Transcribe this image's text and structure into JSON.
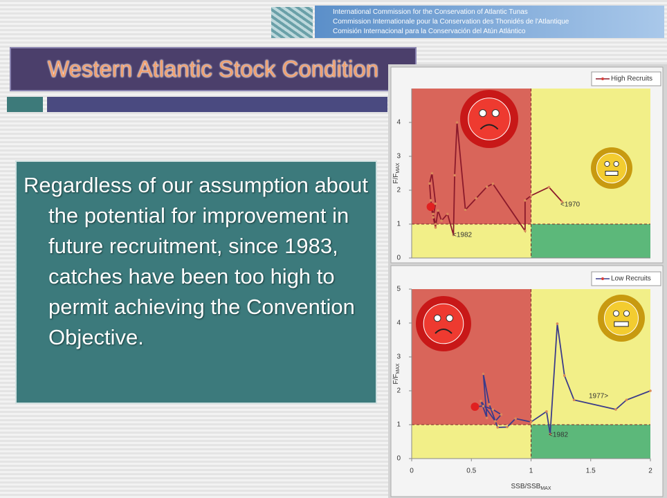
{
  "header": {
    "lines": [
      "International Commission for the Conservation of Atlantic Tunas",
      "Commission Internationale pour la Conservation des Thonidés de l'Atlantique",
      "Comisión Internacional para la Conservación del Atún Atlántico"
    ]
  },
  "slide": {
    "title": "Western Atlantic Stock Condition",
    "body": "Regardless of our assumption about the potential for improvement in future recruitment, since 1983, catches have been too high to permit achieving the Convention Objective."
  },
  "chart_data": [
    {
      "type": "line",
      "y_label": "F/F",
      "y_label_sub": "MAX",
      "series": [
        {
          "name": "High Recruits",
          "color": "#8b1a2b",
          "x": [
            1.26,
            1.15,
            1.0,
            0.95,
            0.95,
            0.68,
            0.63,
            0.54,
            0.45,
            0.38,
            0.36,
            0.35,
            0.3,
            0.25,
            0.22,
            0.2,
            0.18,
            0.2,
            0.17,
            0.15,
            0.16,
            0.18,
            0.2,
            0.16
          ],
          "values": [
            1.66,
            2.09,
            1.84,
            1.7,
            0.8,
            2.19,
            2.1,
            1.76,
            1.42,
            4.0,
            2.44,
            0.68,
            1.3,
            1.1,
            1.4,
            0.9,
            1.2,
            1.6,
            2.5,
            2.2,
            1.7,
            1.3,
            1.0,
            1.51
          ]
        }
      ],
      "xlim": [
        0,
        2
      ],
      "ylim": [
        0,
        5
      ],
      "yticks": [
        0,
        1,
        2,
        3,
        4
      ],
      "reference_lines": {
        "x": 1,
        "y": 1
      },
      "annotations": [
        "<1970",
        "<1982"
      ]
    },
    {
      "type": "line",
      "y_label": "F/F",
      "y_label_sub": "MAX",
      "x_label": "SSB/SSB",
      "x_label_sub": "MAX",
      "series": [
        {
          "name": "Low Recruits",
          "color": "#3b3b8a",
          "x": [
            2.0,
            1.8,
            1.71,
            1.36,
            1.28,
            1.22,
            1.16,
            1.13,
            1.0,
            0.87,
            0.8,
            0.72,
            0.65,
            0.6,
            0.63,
            0.58,
            0.7,
            0.75,
            0.68,
            0.6,
            0.53
          ],
          "values": [
            2.0,
            1.73,
            1.45,
            1.73,
            2.45,
            3.98,
            0.72,
            1.39,
            1.08,
            1.18,
            0.93,
            0.92,
            1.6,
            2.5,
            1.2,
            1.7,
            1.1,
            1.3,
            1.45,
            1.55,
            1.53
          ]
        }
      ],
      "xlim": [
        0,
        2
      ],
      "ylim": [
        0,
        5
      ],
      "yticks": [
        0,
        1,
        2,
        3,
        4,
        5
      ],
      "xticks": [
        0,
        0.5,
        1,
        1.5,
        2
      ],
      "reference_lines": {
        "x": 1,
        "y": 1
      },
      "annotations": [
        "1977>",
        "<1982"
      ]
    }
  ]
}
